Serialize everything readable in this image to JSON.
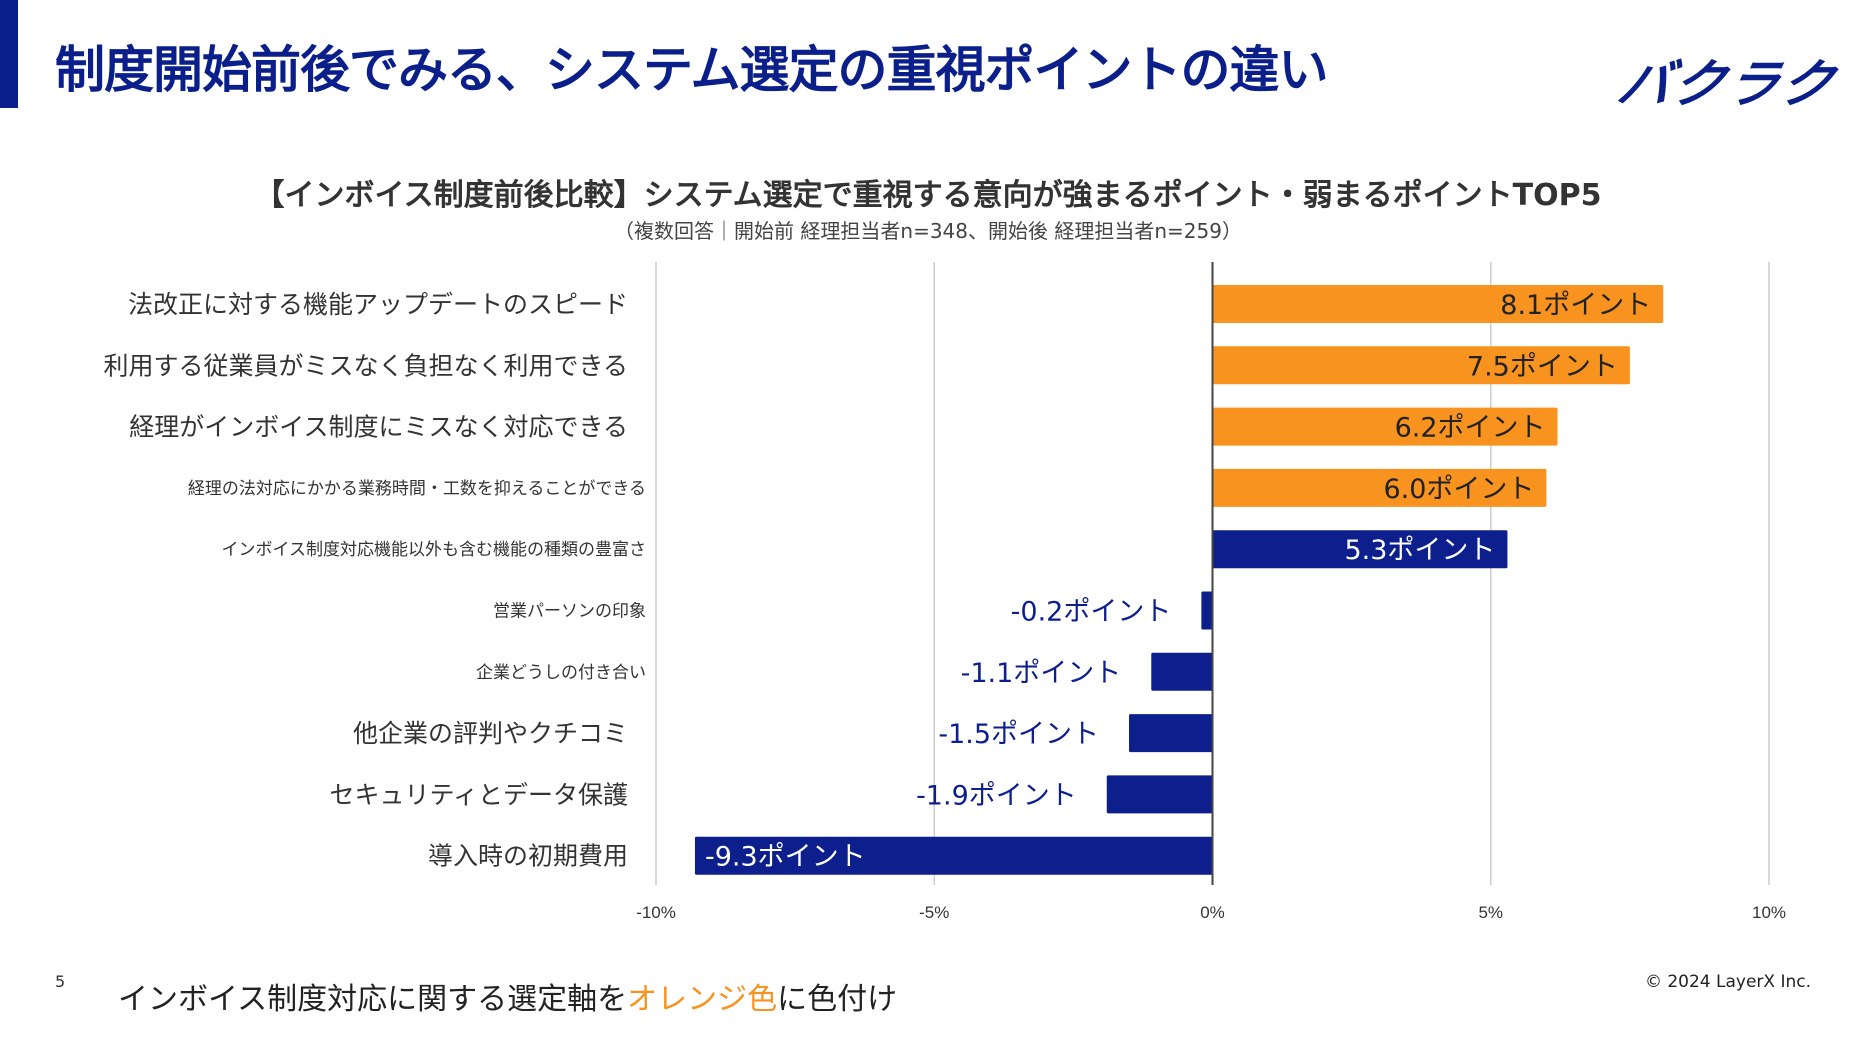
{
  "header": {
    "title": "制度開始前後でみる、システム選定の重視ポイントの違い",
    "logo_text": "バクラク"
  },
  "colors": {
    "brand": "#0a1f8a",
    "orange": "#f7931e",
    "navy": "#0c1f8c",
    "grid": "#cccccc"
  },
  "chart_data": {
    "type": "bar",
    "orientation": "horizontal",
    "title": "【インボイス制度前後比較】システム選定で重視する意向が強まるポイント・弱まるポイントTOP5",
    "subtitle": "（複数回答｜開始前 経理担当者n=348、開始後 経理担当者n=259）",
    "xlim": [
      -10,
      10
    ],
    "x_ticks": [
      -10,
      -5,
      0,
      5,
      10
    ],
    "x_tick_labels": [
      "-10%",
      "-5%",
      "0%",
      "5%",
      "10%"
    ],
    "grid": true,
    "categories": [
      "法改正に対する機能アップデートのスピード",
      "利用する従業員がミスなく負担なく利用できる",
      "経理がインボイス制度にミスなく対応できる",
      "経理の法対応にかかる業務時間・工数を抑えることができる",
      "インボイス制度対応機能以外も含む機能の種類の豊富さ",
      "営業パーソンの印象",
      "企業どうしの付き合い",
      "他企業の評判やクチコミ",
      "セキュリティとデータ保護",
      "導入時の初期費用"
    ],
    "values": [
      8.1,
      7.5,
      6.2,
      6.0,
      5.3,
      -0.2,
      -1.1,
      -1.5,
      -1.9,
      -9.3
    ],
    "data_labels": [
      "8.1ポイント",
      "7.5ポイント",
      "6.2ポイント",
      "6.0ポイント",
      "5.3ポイント",
      "-0.2ポイント",
      "-1.1ポイント",
      "-1.5ポイント",
      "-1.9ポイント",
      "-9.3ポイント"
    ],
    "bar_colors": [
      "orange",
      "orange",
      "orange",
      "orange",
      "navy",
      "navy",
      "navy",
      "navy",
      "navy",
      "navy"
    ],
    "label_sizes": [
      "large",
      "large",
      "large",
      "small",
      "small",
      "small",
      "small",
      "large",
      "large",
      "large"
    ]
  },
  "footer": {
    "page_number": "5",
    "note_prefix": "インボイス制度対応に関する選定軸を",
    "note_highlight": "オレンジ色",
    "note_suffix": "に色付け",
    "copyright": "© 2024 LayerX Inc."
  }
}
